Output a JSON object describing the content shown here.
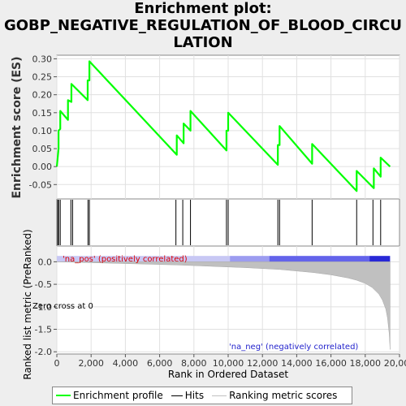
{
  "title_lines": [
    "Enrichment plot:",
    "GOBP_NEGATIVE_REGULATION_OF_BLOOD_CIRCU",
    "LATION"
  ],
  "chart_data": {
    "type": "line",
    "top_panel": {
      "ylabel": "Enrichment score (ES)",
      "ylim": [
        -0.09,
        0.31
      ],
      "yticks": [
        -0.05,
        0.0,
        0.05,
        0.1,
        0.15,
        0.2,
        0.25,
        0.3
      ],
      "ytick_labels": [
        "-0.05",
        "0.00",
        "0.05",
        "0.10",
        "0.15",
        "0.20",
        "0.25",
        "0.30"
      ],
      "series": [
        {
          "label": "Enrichment profile",
          "color": "#00ff00",
          "x": [
            0,
            100,
            100,
            200,
            200,
            650,
            650,
            850,
            850,
            1800,
            1800,
            1900,
            1900,
            7000,
            7000,
            7400,
            7400,
            7800,
            7800,
            9900,
            9900,
            10000,
            10000,
            12900,
            12900,
            13000,
            13000,
            14900,
            14900,
            17500,
            17500,
            18500,
            18500,
            18900,
            18900,
            19450
          ],
          "y": [
            0.0,
            0.05,
            0.1,
            0.105,
            0.155,
            0.13,
            0.185,
            0.18,
            0.23,
            0.185,
            0.24,
            0.24,
            0.293,
            0.033,
            0.087,
            0.065,
            0.12,
            0.1,
            0.155,
            0.045,
            0.1,
            0.1,
            0.15,
            0.005,
            0.06,
            0.06,
            0.113,
            0.008,
            0.063,
            -0.068,
            -0.012,
            -0.06,
            -0.005,
            -0.028,
            0.025,
            0.0
          ]
        }
      ]
    },
    "hits_panel": {
      "label": "Hits",
      "positions": [
        50,
        110,
        200,
        820,
        920,
        1820,
        1900,
        6950,
        7350,
        7800,
        9900,
        10000,
        12900,
        13000,
        14900,
        17500,
        18450,
        18900
      ]
    },
    "bottom_panel": {
      "xlabel": "Rank in Ordered Dataset",
      "ylabel": "Ranked list metric (PreRanked)",
      "xlim": [
        0,
        20000
      ],
      "xticks": [
        0,
        2000,
        4000,
        6000,
        8000,
        10000,
        12000,
        14000,
        16000,
        18000,
        20000
      ],
      "xtick_labels": [
        "0",
        "2,000",
        "4,000",
        "6,000",
        "8,000",
        "10,000",
        "12,000",
        "14,000",
        "16,000",
        "18,000",
        "20,000"
      ],
      "ylim": [
        -2.05,
        0.35
      ],
      "yticks": [
        0.0,
        -0.5,
        -1.0,
        -1.5,
        -2.0
      ],
      "ytick_labels": [
        "0.0",
        "-0.5",
        "-1.0",
        "-1.5",
        "-2.0"
      ],
      "series": [
        {
          "label": "Ranking metric scores",
          "color": "#c0c0c0",
          "x": [
            0,
            2000,
            5000,
            7000,
            9000,
            11000,
            13000,
            15000,
            16000,
            17000,
            17500,
            18000,
            18400,
            18800,
            19000,
            19200,
            19300,
            19400,
            19450
          ],
          "y": [
            0.0,
            -0.02,
            -0.05,
            -0.07,
            -0.1,
            -0.13,
            -0.17,
            -0.24,
            -0.29,
            -0.36,
            -0.41,
            -0.48,
            -0.57,
            -0.72,
            -0.85,
            -1.05,
            -1.25,
            -1.6,
            -1.95
          ]
        }
      ],
      "annotations": {
        "pos": "'na_pos' (positively correlated)",
        "neg": "'na_neg' (negatively correlated)",
        "zero_cross": "Zero cross at 0"
      },
      "colorbar": [
        {
          "from": 0,
          "to": 10100,
          "color": "#c8c8f4"
        },
        {
          "from": 10100,
          "to": 12400,
          "color": "#9c9cf0"
        },
        {
          "from": 12400,
          "to": 18250,
          "color": "#6363ea"
        },
        {
          "from": 18250,
          "to": 19450,
          "color": "#2828d6"
        }
      ]
    },
    "legend": [
      {
        "label": "Enrichment profile",
        "color": "#00ff00"
      },
      {
        "label": "Hits",
        "color": "#000000"
      },
      {
        "label": "Ranking metric scores",
        "color": "#c0c0c0"
      }
    ]
  }
}
